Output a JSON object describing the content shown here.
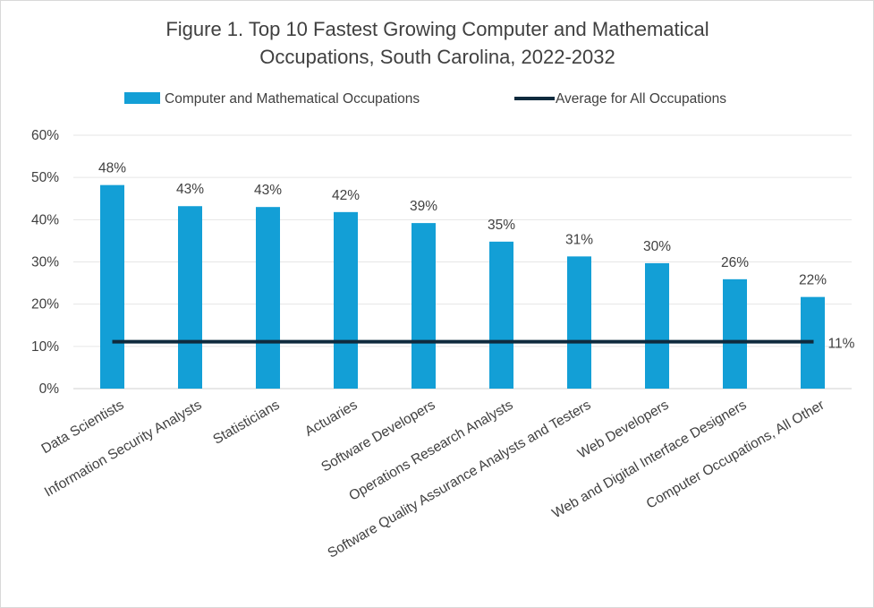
{
  "chart_data": {
    "type": "bar",
    "title": "Figure 1. Top 10 Fastest Growing Computer and Mathematical Occupations, South Carolina, 2022-2032",
    "title_lines": [
      "Figure 1. Top 10 Fastest Growing Computer and Mathematical",
      "Occupations, South Carolina, 2022-2032"
    ],
    "xlabel": "",
    "ylabel": "",
    "ylim": [
      0,
      60
    ],
    "yticks": [
      "0%",
      "10%",
      "20%",
      "30%",
      "40%",
      "50%",
      "60%"
    ],
    "grid": true,
    "legend_position": "top",
    "categories": [
      "Data Scientists",
      "Information Security Analysts",
      "Statisticians",
      "Actuaries",
      "Software Developers",
      "Operations Research Analysts",
      "Software Quality Assurance Analysts and Testers",
      "Web Developers",
      "Web and Digital Interface Designers",
      "Computer Occupations, All Other"
    ],
    "series": [
      {
        "name": "Computer and Mathematical Occupations",
        "type": "bar",
        "color": "#139fd6",
        "values": [
          48.2,
          43.2,
          43.0,
          41.8,
          39.2,
          34.8,
          31.3,
          29.7,
          25.9,
          21.7
        ],
        "labels": [
          "48%",
          "43%",
          "43%",
          "42%",
          "39%",
          "35%",
          "31%",
          "30%",
          "26%",
          "22%"
        ]
      },
      {
        "name": "Average for All Occupations",
        "type": "line",
        "color": "#0f2a3d",
        "value": 11.1,
        "label": "11%"
      }
    ]
  }
}
